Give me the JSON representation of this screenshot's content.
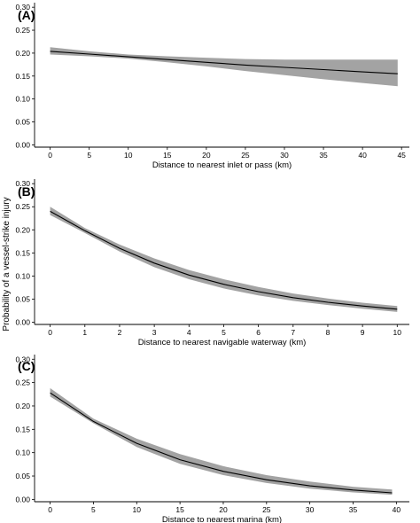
{
  "figure": {
    "shared_ylabel": "Probability of a vessel-strike injury"
  },
  "chart_data": [
    {
      "type": "line",
      "panel_label": "(A)",
      "xlabel": "Distance to nearest inlet or pass (km)",
      "ylabel": "Probability of a vessel-strike injury",
      "xlim": [
        -2,
        46
      ],
      "ylim": [
        -0.005,
        0.31
      ],
      "x_ticks": [
        0,
        5,
        10,
        15,
        20,
        25,
        30,
        35,
        40,
        45
      ],
      "y_ticks": [
        0.0,
        0.05,
        0.1,
        0.15,
        0.2,
        0.25,
        0.3
      ],
      "y_tick_labels": [
        "0.00",
        "0.05",
        "0.10",
        "0.15",
        "0.20",
        "0.25",
        "0.30"
      ],
      "grid": false,
      "series": [
        {
          "x": [
            0,
            5,
            10,
            15,
            20,
            25,
            30,
            35,
            40,
            44.5
          ],
          "y": [
            0.204,
            0.198,
            0.192,
            0.186,
            0.18,
            0.174,
            0.169,
            0.164,
            0.159,
            0.155
          ],
          "lower": [
            0.197,
            0.193,
            0.188,
            0.18,
            0.171,
            0.161,
            0.152,
            0.143,
            0.135,
            0.128
          ],
          "upper": [
            0.213,
            0.204,
            0.197,
            0.193,
            0.19,
            0.187,
            0.186,
            0.186,
            0.186,
            0.186
          ]
        }
      ]
    },
    {
      "type": "line",
      "panel_label": "(B)",
      "xlabel": "Distance to nearest navigable waterway (km)",
      "ylabel": "Probability of a vessel-strike injury",
      "xlim": [
        -0.45,
        10.35
      ],
      "ylim": [
        -0.005,
        0.31
      ],
      "x_ticks": [
        0,
        1,
        2,
        3,
        4,
        5,
        6,
        7,
        8,
        9,
        10
      ],
      "y_ticks": [
        0.0,
        0.05,
        0.1,
        0.15,
        0.2,
        0.25,
        0.3
      ],
      "y_tick_labels": [
        "0.00",
        "0.05",
        "0.10",
        "0.15",
        "0.20",
        "0.25",
        "0.30"
      ],
      "grid": false,
      "series": [
        {
          "x": [
            0,
            1,
            2,
            3,
            4,
            5,
            6,
            7,
            8,
            9,
            10
          ],
          "y": [
            0.24,
            0.198,
            0.16,
            0.128,
            0.102,
            0.082,
            0.066,
            0.053,
            0.043,
            0.035,
            0.028
          ],
          "lower": [
            0.232,
            0.193,
            0.153,
            0.119,
            0.093,
            0.073,
            0.058,
            0.046,
            0.037,
            0.029,
            0.022
          ],
          "upper": [
            0.25,
            0.204,
            0.168,
            0.138,
            0.113,
            0.093,
            0.076,
            0.062,
            0.051,
            0.042,
            0.035
          ]
        }
      ]
    },
    {
      "type": "line",
      "panel_label": "(C)",
      "xlabel": "Distance to nearest marina (km)",
      "ylabel": "Probability of a vessel-strike injury",
      "xlim": [
        -1.8,
        41.5
      ],
      "ylim": [
        -0.005,
        0.31
      ],
      "x_ticks": [
        0,
        5,
        10,
        15,
        20,
        25,
        30,
        35,
        40
      ],
      "y_ticks": [
        0.0,
        0.05,
        0.1,
        0.15,
        0.2,
        0.25,
        0.3
      ],
      "y_tick_labels": [
        "0.00",
        "0.05",
        "0.10",
        "0.15",
        "0.20",
        "0.25",
        "0.30"
      ],
      "grid": false,
      "series": [
        {
          "x": [
            0,
            5,
            10,
            15,
            20,
            25,
            30,
            35,
            39.5
          ],
          "y": [
            0.228,
            0.167,
            0.12,
            0.085,
            0.06,
            0.042,
            0.029,
            0.02,
            0.014
          ],
          "lower": [
            0.22,
            0.163,
            0.112,
            0.076,
            0.052,
            0.035,
            0.023,
            0.015,
            0.01
          ],
          "upper": [
            0.238,
            0.173,
            0.13,
            0.097,
            0.071,
            0.052,
            0.038,
            0.027,
            0.021
          ]
        }
      ]
    }
  ],
  "colors": {
    "band": "#a3a3a3",
    "line": "#000000",
    "axis": "#000000"
  }
}
